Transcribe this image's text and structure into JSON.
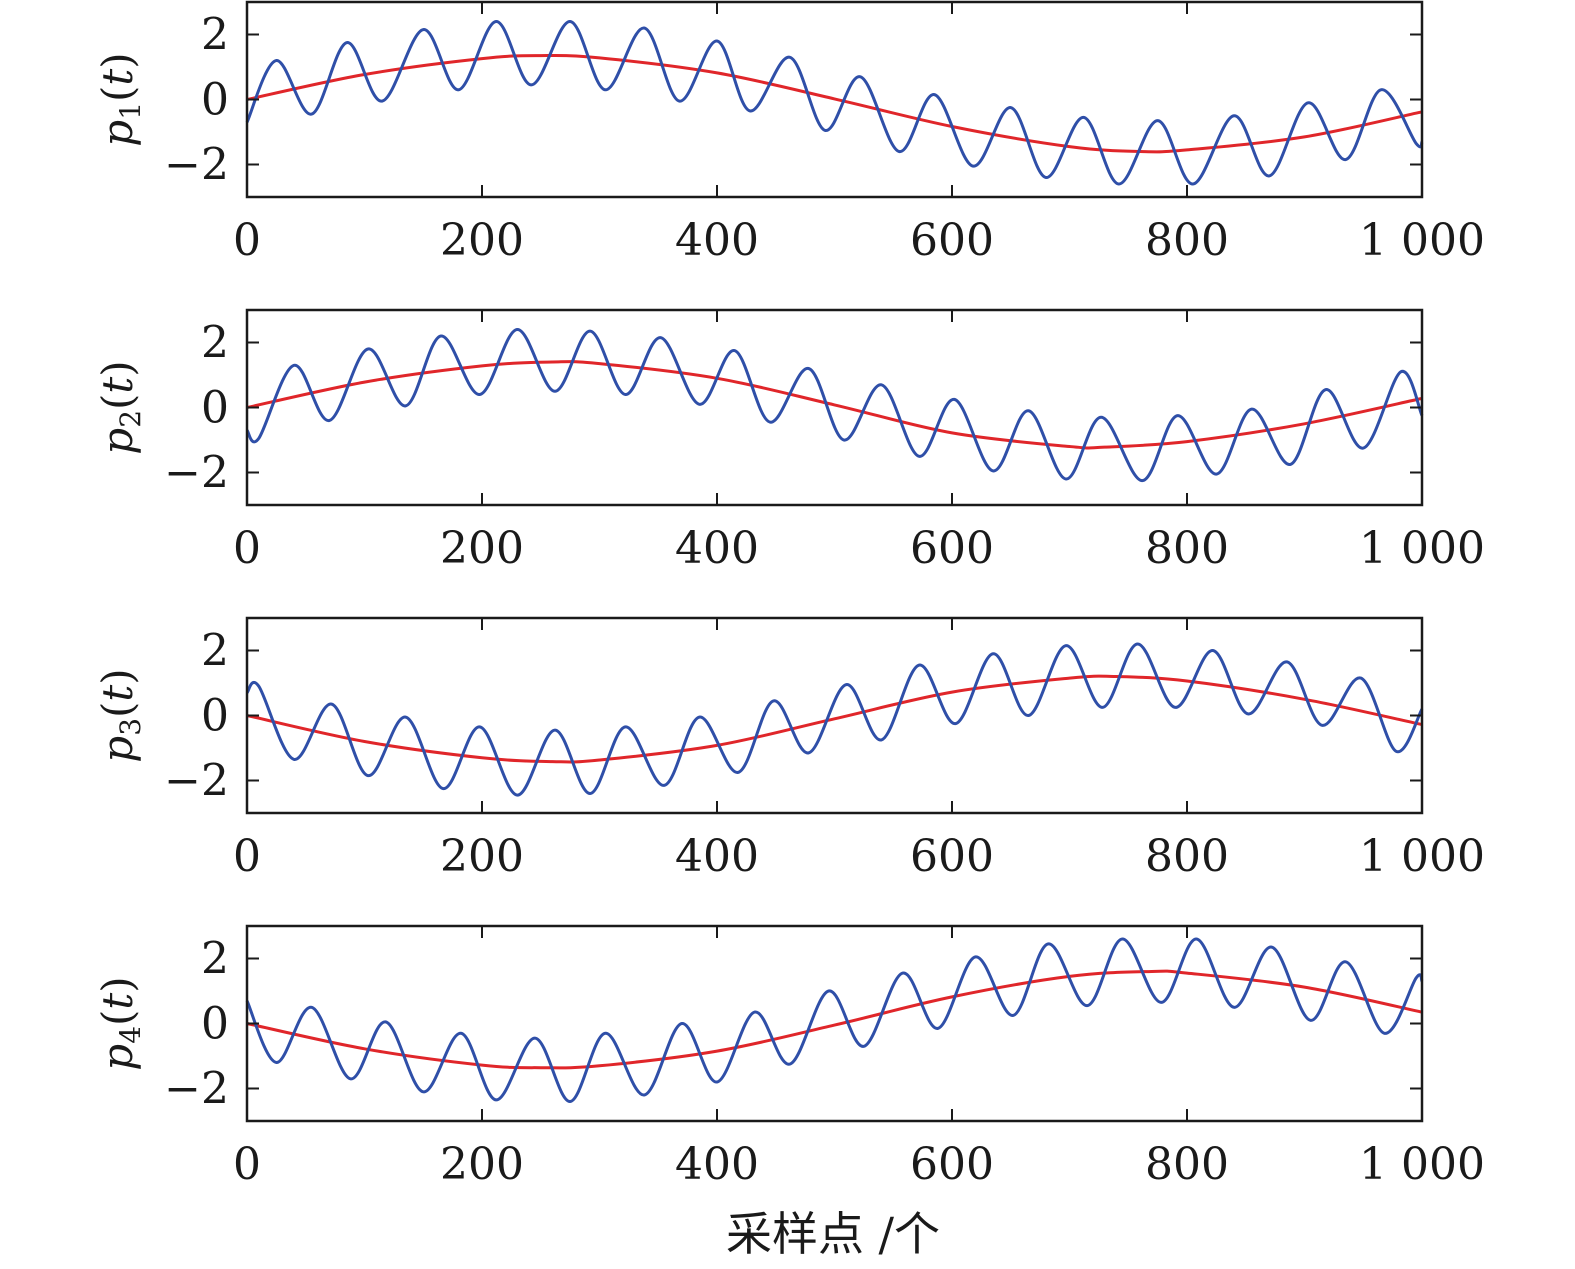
{
  "colors": {
    "blue": "#2f4fa8",
    "red": "#e0262a",
    "axis": "#1a1a1a"
  },
  "xlabel": "采样点 /个",
  "chart_data": [
    {
      "type": "line",
      "ylabel": {
        "base": "p",
        "sub": "1",
        "arg": "t"
      },
      "xlim": [
        0,
        1000
      ],
      "ylim": [
        -3,
        3
      ],
      "xticks": [
        0,
        200,
        400,
        600,
        800,
        1000
      ],
      "xticklabels": [
        "0",
        "200",
        "400",
        "600",
        "800",
        "1 000"
      ],
      "yticks": [
        -2,
        0,
        2
      ],
      "yticklabels": [
        "−2",
        "0",
        "2"
      ],
      "series": [
        {
          "color": "red",
          "x": [
            0,
            100,
            200,
            250,
            300,
            400,
            500,
            600,
            700,
            760,
            800,
            900,
            1000
          ],
          "y": [
            0,
            0.77,
            1.26,
            1.35,
            1.28,
            0.82,
            0.02,
            -0.83,
            -1.45,
            -1.6,
            -1.55,
            -1.15,
            -0.38
          ]
        },
        {
          "color": "blue",
          "x": [
            0,
            25,
            55,
            85,
            115,
            150,
            180,
            212,
            242,
            275,
            305,
            338,
            368,
            400,
            428,
            462,
            492,
            522,
            555,
            585,
            618,
            650,
            680,
            712,
            742,
            775,
            805,
            840,
            870,
            903,
            935,
            965,
            995,
            1000
          ],
          "y": [
            -0.7,
            1.2,
            -0.45,
            1.75,
            -0.05,
            2.15,
            0.3,
            2.4,
            0.45,
            2.4,
            0.3,
            2.2,
            -0.05,
            1.8,
            -0.35,
            1.3,
            -0.95,
            0.7,
            -1.6,
            0.15,
            -2.05,
            -0.25,
            -2.4,
            -0.55,
            -2.6,
            -0.65,
            -2.6,
            -0.5,
            -2.35,
            -0.1,
            -1.85,
            0.3,
            -1.35,
            -1.3
          ]
        }
      ]
    },
    {
      "type": "line",
      "ylabel": {
        "base": "p",
        "sub": "2",
        "arg": "t"
      },
      "xlim": [
        0,
        1000
      ],
      "ylim": [
        -3,
        3
      ],
      "xticks": [
        0,
        200,
        400,
        600,
        800,
        1000
      ],
      "xticklabels": [
        "0",
        "200",
        "400",
        "600",
        "800",
        "1 000"
      ],
      "yticks": [
        -2,
        0,
        2
      ],
      "yticklabels": [
        "−2",
        "0",
        "2"
      ],
      "series": [
        {
          "color": "red",
          "x": [
            0,
            100,
            200,
            260,
            300,
            400,
            500,
            600,
            700,
            730,
            800,
            900,
            1000
          ],
          "y": [
            0,
            0.78,
            1.28,
            1.4,
            1.35,
            0.9,
            0.08,
            -0.78,
            -1.2,
            -1.22,
            -1.05,
            -0.5,
            0.28
          ]
        },
        {
          "color": "blue",
          "x": [
            0,
            10,
            40,
            70,
            103,
            135,
            165,
            198,
            230,
            262,
            292,
            322,
            352,
            385,
            415,
            445,
            478,
            508,
            540,
            572,
            602,
            635,
            665,
            697,
            727,
            762,
            792,
            825,
            855,
            888,
            918,
            950,
            982,
            1000
          ],
          "y": [
            -0.7,
            -0.95,
            1.3,
            -0.4,
            1.8,
            0.05,
            2.2,
            0.4,
            2.4,
            0.5,
            2.35,
            0.4,
            2.15,
            0.1,
            1.75,
            -0.45,
            1.2,
            -1.0,
            0.7,
            -1.5,
            0.25,
            -1.95,
            -0.1,
            -2.2,
            -0.3,
            -2.25,
            -0.25,
            -2.05,
            -0.05,
            -1.75,
            0.55,
            -1.25,
            1.1,
            -0.25
          ]
        }
      ]
    },
    {
      "type": "line",
      "ylabel": {
        "base": "p",
        "sub": "3",
        "arg": "t"
      },
      "xlim": [
        0,
        1000
      ],
      "ylim": [
        -3,
        3
      ],
      "xticks": [
        0,
        200,
        400,
        600,
        800,
        1000
      ],
      "xticklabels": [
        "0",
        "200",
        "400",
        "600",
        "800",
        "1 000"
      ],
      "yticks": [
        -2,
        0,
        2
      ],
      "yticklabels": [
        "−2",
        "0",
        "2"
      ],
      "series": [
        {
          "color": "red",
          "x": [
            0,
            100,
            200,
            260,
            300,
            400,
            500,
            600,
            700,
            740,
            800,
            900,
            1000
          ],
          "y": [
            0,
            -0.8,
            -1.3,
            -1.42,
            -1.37,
            -0.92,
            -0.1,
            0.72,
            1.15,
            1.2,
            1.06,
            0.5,
            -0.28
          ]
        },
        {
          "color": "blue",
          "x": [
            0,
            10,
            40,
            72,
            103,
            135,
            167,
            198,
            230,
            262,
            292,
            322,
            355,
            385,
            418,
            448,
            478,
            510,
            540,
            572,
            603,
            635,
            665,
            697,
            728,
            758,
            790,
            822,
            852,
            885,
            915,
            948,
            978,
            1000
          ],
          "y": [
            0.7,
            0.9,
            -1.35,
            0.35,
            -1.85,
            -0.05,
            -2.25,
            -0.35,
            -2.45,
            -0.45,
            -2.4,
            -0.35,
            -2.15,
            -0.05,
            -1.75,
            0.45,
            -1.15,
            0.95,
            -0.75,
            1.55,
            -0.25,
            1.9,
            0.0,
            2.15,
            0.25,
            2.2,
            0.25,
            2.0,
            0.05,
            1.65,
            -0.3,
            1.15,
            -1.1,
            0.2
          ]
        }
      ]
    },
    {
      "type": "line",
      "ylabel": {
        "base": "p",
        "sub": "4",
        "arg": "t"
      },
      "xlim": [
        0,
        1000
      ],
      "ylim": [
        -3,
        3
      ],
      "xticks": [
        0,
        200,
        400,
        600,
        800,
        1000
      ],
      "xticklabels": [
        "0",
        "200",
        "400",
        "600",
        "800",
        "1 000"
      ],
      "yticks": [
        -2,
        0,
        2
      ],
      "yticklabels": [
        "−2",
        "0",
        "2"
      ],
      "series": [
        {
          "color": "red",
          "x": [
            0,
            100,
            200,
            250,
            300,
            400,
            500,
            600,
            700,
            770,
            800,
            900,
            1000
          ],
          "y": [
            0,
            -0.78,
            -1.28,
            -1.36,
            -1.3,
            -0.85,
            -0.05,
            0.82,
            1.45,
            1.6,
            1.55,
            1.12,
            0.35
          ]
        },
        {
          "color": "blue",
          "x": [
            0,
            25,
            55,
            88,
            118,
            150,
            182,
            212,
            245,
            275,
            305,
            338,
            370,
            400,
            432,
            462,
            495,
            525,
            558,
            588,
            620,
            652,
            682,
            715,
            745,
            778,
            808,
            840,
            872,
            905,
            935,
            968,
            995,
            1000
          ],
          "y": [
            0.7,
            -1.2,
            0.5,
            -1.7,
            0.05,
            -2.1,
            -0.3,
            -2.35,
            -0.45,
            -2.4,
            -0.3,
            -2.2,
            0.0,
            -1.8,
            0.35,
            -1.25,
            1.0,
            -0.7,
            1.55,
            -0.15,
            2.05,
            0.25,
            2.45,
            0.55,
            2.6,
            0.65,
            2.6,
            0.5,
            2.35,
            0.1,
            1.9,
            -0.3,
            1.4,
            1.3
          ]
        }
      ]
    }
  ]
}
